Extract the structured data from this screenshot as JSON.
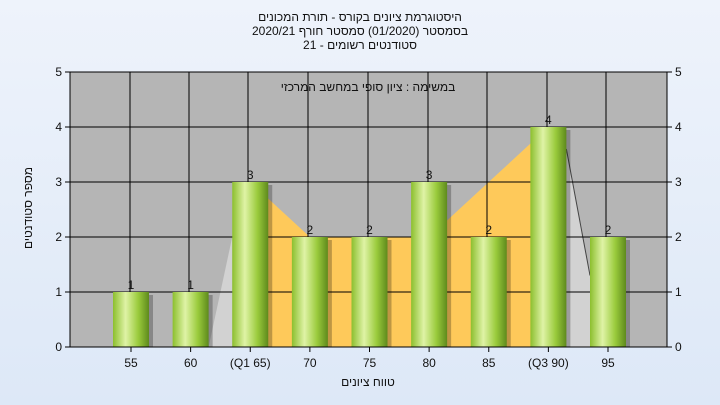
{
  "header": {
    "title_line1": "היסטוגרמת ציונים בקורס - תורת המכונים",
    "title_line2": "בסמסטר  (01/2020)  סמסטר חורף  2020/21",
    "title_line3": "סטודנטים רשומים - 21"
  },
  "chart_data": {
    "type": "bar",
    "title": "היסטוגרמת ציונים בקורס - תורת המכונים",
    "subtitle": "בסמסטר  (01/2020)  סמסטר חורף  2020/21 — סטודנטים רשומים - 21",
    "annotation": "במשימה : ציון סופי במחשב המרכזי",
    "xlabel": "טווח ציונים",
    "ylabel": "מספר סטודנטים",
    "ylim": [
      0,
      5
    ],
    "yticks": [
      0,
      1,
      2,
      3,
      4,
      5
    ],
    "categories": [
      "55",
      "60",
      "(Q1 65)",
      "70",
      "75",
      "80",
      "85",
      "(Q3 90)",
      "95"
    ],
    "values": [
      1,
      1,
      3,
      2,
      2,
      3,
      2,
      4,
      2
    ],
    "grid": true,
    "legend": "none",
    "colors": {
      "plot_bg": "#b5b5b5",
      "bar_light": "#dff3a6",
      "bar_mid": "#9acb3c",
      "bar_dark": "#5e8a1c",
      "area_fill": "#fec95a",
      "distribution_fill": "#d2d2d2"
    }
  }
}
